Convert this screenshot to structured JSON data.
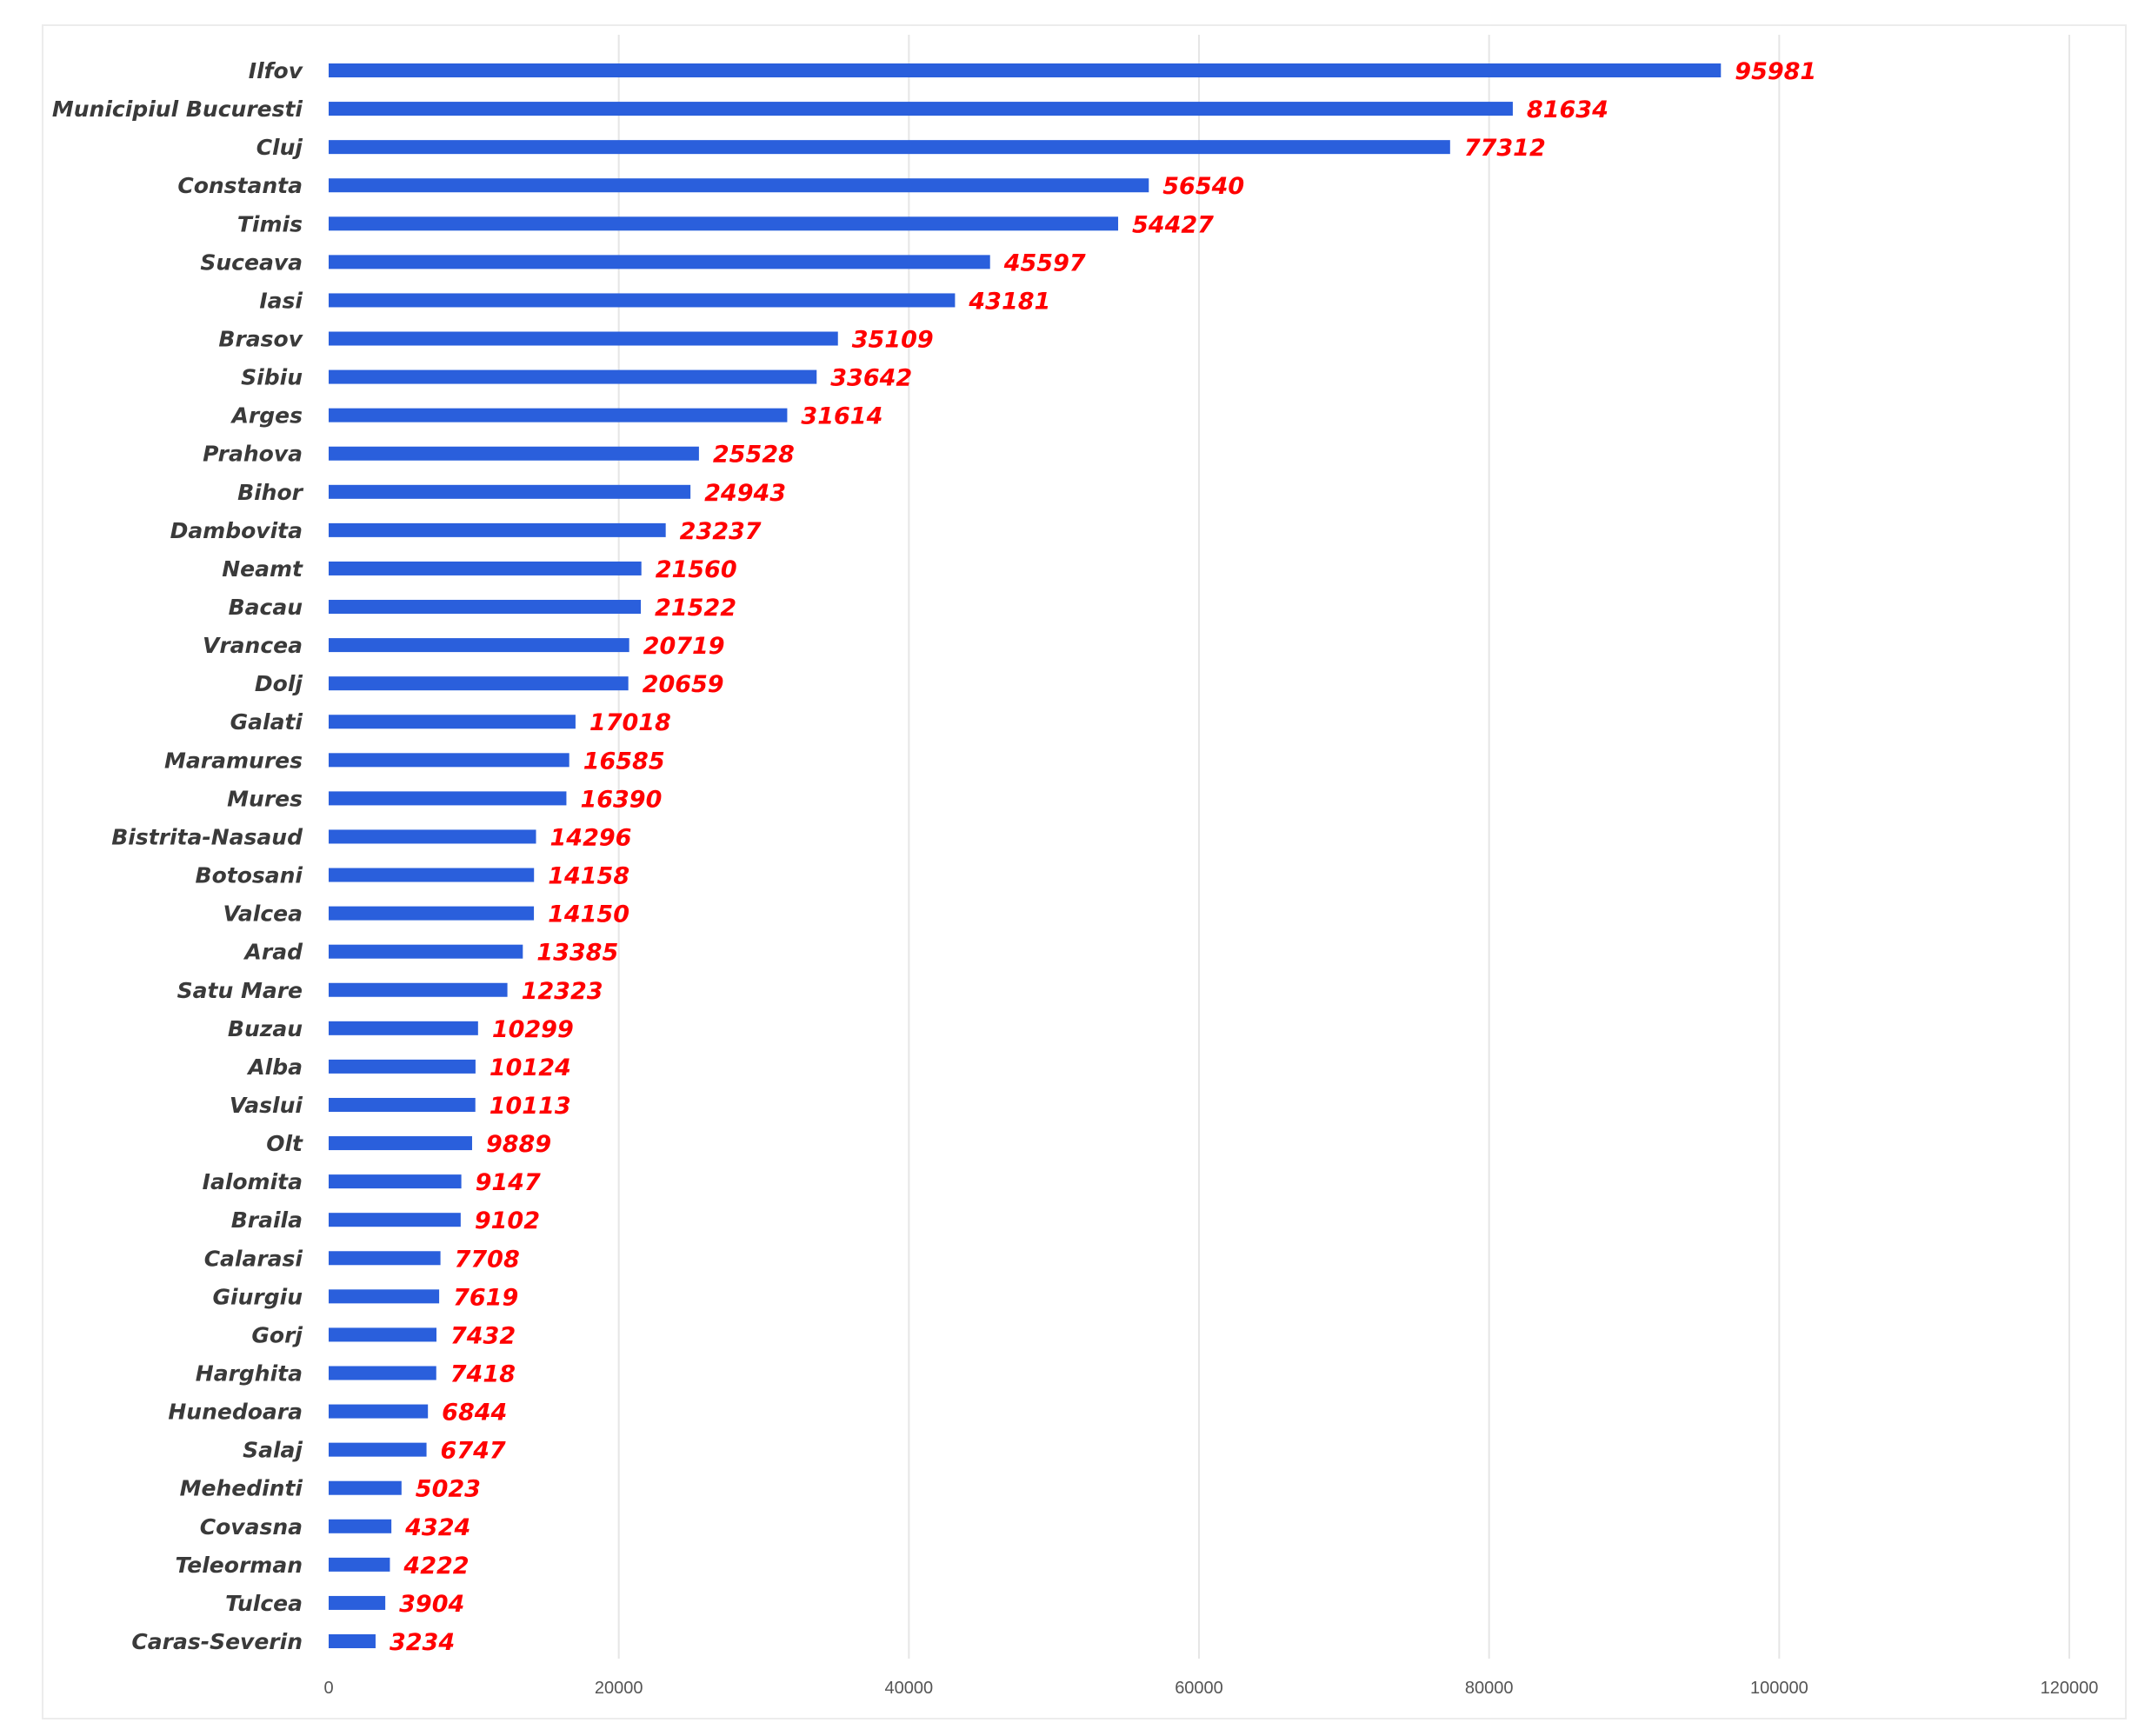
{
  "chart_data": {
    "type": "bar",
    "orientation": "horizontal",
    "title": "",
    "xlabel": "",
    "ylabel": "",
    "xlim": [
      0,
      120000
    ],
    "ticks": [
      0,
      20000,
      40000,
      60000,
      80000,
      100000,
      120000
    ],
    "tick_labels": [
      "0",
      "20000",
      "40000",
      "60000",
      "80000",
      "100000",
      "120000"
    ],
    "grid": true,
    "bar_color": "#2a5fdc",
    "label_color": "#ff0000",
    "categories": [
      "Ilfov",
      "Municipiul Bucuresti",
      "Cluj",
      "Constanta",
      "Timis",
      "Suceava",
      "Iasi",
      "Brasov",
      "Sibiu",
      "Arges",
      "Prahova",
      "Bihor",
      "Dambovita",
      "Neamt",
      "Bacau",
      "Vrancea",
      "Dolj",
      "Galati",
      "Maramures",
      "Mures",
      "Bistrita-Nasaud",
      "Botosani",
      "Valcea",
      "Arad",
      "Satu Mare",
      "Buzau",
      "Alba",
      "Vaslui",
      "Olt",
      "Ialomita",
      "Braila",
      "Calarasi",
      "Giurgiu",
      "Gorj",
      "Harghita",
      "Hunedoara",
      "Salaj",
      "Mehedinti",
      "Covasna",
      "Teleorman",
      "Tulcea",
      "Caras-Severin"
    ],
    "values": [
      95981,
      81634,
      77312,
      56540,
      54427,
      45597,
      43181,
      35109,
      33642,
      31614,
      25528,
      24943,
      23237,
      21560,
      21522,
      20719,
      20659,
      17018,
      16585,
      16390,
      14296,
      14158,
      14150,
      13385,
      12323,
      10299,
      10124,
      10113,
      9889,
      9147,
      9102,
      7708,
      7619,
      7432,
      7418,
      6844,
      6747,
      5023,
      4324,
      4222,
      3904,
      3234
    ]
  }
}
